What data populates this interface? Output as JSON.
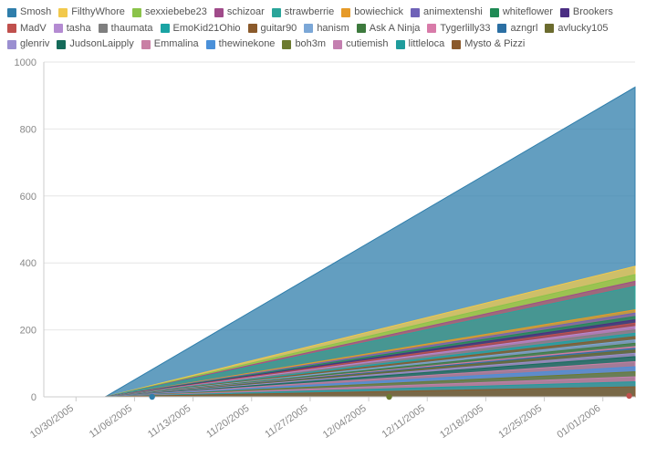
{
  "chart": {
    "type": "area",
    "background_color": "#ffffff",
    "grid_color": "#e6e6e6",
    "axis_color": "#cccccc",
    "tick_label_color": "#888888",
    "tick_fontsize": 11,
    "legend_fontsize": 11,
    "fill_opacity": 0.75,
    "ylim": [
      0,
      1000
    ],
    "ytick_step": 200,
    "x_categories": [
      "10/30/2005",
      "11/06/2005",
      "11/13/2005",
      "11/20/2005",
      "11/27/2005",
      "12/04/2005",
      "12/11/2005",
      "12/18/2005",
      "12/25/2005",
      "01/01/2006"
    ],
    "x_tick_rotation": -35,
    "start_index": 0.5,
    "series": [
      {
        "name": "Smosh",
        "color": "#2f7eab",
        "end": 925
      },
      {
        "name": "FilthyWhore",
        "color": "#f2c94c",
        "end": 390
      },
      {
        "name": "sexxiebebe23",
        "color": "#8bc34a",
        "end": 365
      },
      {
        "name": "schizoar",
        "color": "#a04b8a",
        "end": 345
      },
      {
        "name": "strawberrie",
        "color": "#2aa59a",
        "end": 330
      },
      {
        "name": "bowiechick",
        "color": "#e69a28",
        "end": 260
      },
      {
        "name": "animextenshi",
        "color": "#6f62b8",
        "end": 250
      },
      {
        "name": "whiteflower",
        "color": "#1f8a55",
        "end": 240
      },
      {
        "name": "Brookers",
        "color": "#4b2e83",
        "end": 230
      },
      {
        "name": "MadV",
        "color": "#c0504d",
        "end": 220
      },
      {
        "name": "tasha",
        "color": "#b48bd2",
        "end": 210
      },
      {
        "name": "thaumata",
        "color": "#7f7f7f",
        "end": 200
      },
      {
        "name": "EmoKid21Ohio",
        "color": "#1aa3a3",
        "end": 190
      },
      {
        "name": "guitar90",
        "color": "#8b5a2b",
        "end": 180
      },
      {
        "name": "hanism",
        "color": "#7ba7d7",
        "end": 170
      },
      {
        "name": "Ask A Ninja",
        "color": "#3d7a3d",
        "end": 160
      },
      {
        "name": "Tygerlilly33",
        "color": "#d87ba9",
        "end": 150
      },
      {
        "name": "azngrl",
        "color": "#2b6fa3",
        "end": 145
      },
      {
        "name": "avlucky105",
        "color": "#6b6b2e",
        "end": 140
      },
      {
        "name": "glenriv",
        "color": "#9b8fd1",
        "end": 130
      },
      {
        "name": "JudsonLaipply",
        "color": "#156b5a",
        "end": 120
      },
      {
        "name": "Emmalina",
        "color": "#c97fa4",
        "end": 105
      },
      {
        "name": "thewinekone",
        "color": "#4a90d9",
        "end": 90
      },
      {
        "name": "boh3m",
        "color": "#6c7a2f",
        "end": 75
      },
      {
        "name": "cutiemish",
        "color": "#c47fb0",
        "end": 60
      },
      {
        "name": "littleloca",
        "color": "#1f9c9c",
        "end": 45
      },
      {
        "name": "Mysto & Pizzi",
        "color": "#8b5a2b",
        "end": 30
      }
    ],
    "markers": [
      {
        "x_index": 1.3,
        "y": 0,
        "color": "#2f7eab"
      },
      {
        "x_index": 5.35,
        "y": 0,
        "color": "#6c7a2f"
      },
      {
        "x_index": 9.45,
        "y": 3,
        "color": "#c0504d"
      }
    ]
  }
}
